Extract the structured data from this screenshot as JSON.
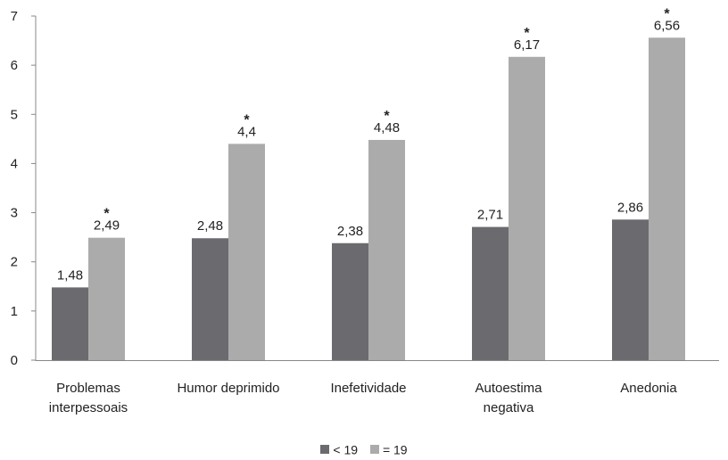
{
  "chart_data": {
    "type": "bar",
    "categories": [
      [
        "Problemas",
        "interpessoais"
      ],
      [
        "Humor deprimido"
      ],
      [
        "Inefetividade"
      ],
      [
        "Autoestima",
        "negativa"
      ],
      [
        "Anedonia"
      ]
    ],
    "series": [
      {
        "name": "< 19",
        "color": "#6b6b6f",
        "values": [
          1.48,
          2.48,
          2.38,
          2.71,
          2.86
        ],
        "labels": [
          "1,48",
          "2,48",
          "2,38",
          "2,71",
          "2,86"
        ],
        "significant": [
          false,
          false,
          false,
          false,
          false
        ]
      },
      {
        "name": "= 19",
        "color": "#ababab",
        "values": [
          2.49,
          4.4,
          4.48,
          6.17,
          6.56
        ],
        "labels": [
          "2,49",
          "4,4",
          "4,48",
          "6,17",
          "6,56"
        ],
        "significant": [
          true,
          true,
          true,
          true,
          true
        ]
      }
    ],
    "significance_marker": "*",
    "y_ticks": [
      "0",
      "1",
      "2",
      "3",
      "4",
      "5",
      "6",
      "7"
    ],
    "ylim": [
      0,
      7
    ],
    "grid": false,
    "legend_position": "bottom",
    "title": "",
    "xlabel": "",
    "ylabel": ""
  }
}
